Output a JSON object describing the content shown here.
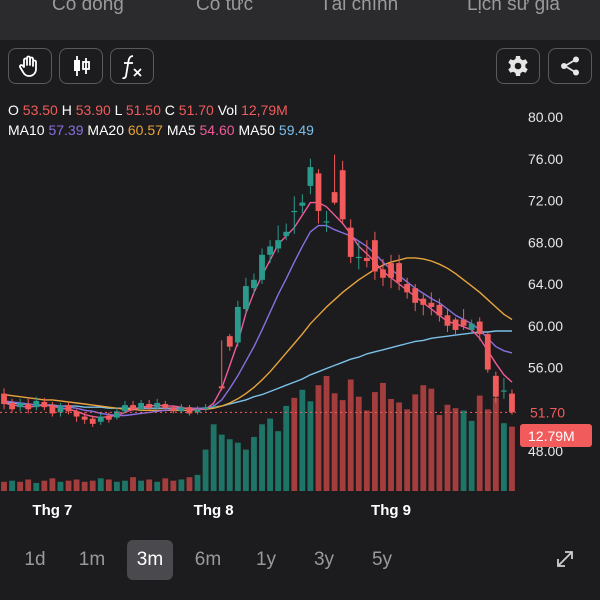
{
  "tabs": [
    "Cổ đông",
    "Cổ tức",
    "Tài chính",
    "Lịch sử giá"
  ],
  "toolbar": {
    "buttons": [
      {
        "name": "hand-tool-button",
        "icon": "hand-icon"
      },
      {
        "name": "candlestick-type-button",
        "icon": "candlestick-icon"
      },
      {
        "name": "indicator-button",
        "icon": "function-fx-icon"
      }
    ],
    "right_buttons": [
      {
        "name": "settings-button",
        "icon": "gear-icon"
      },
      {
        "name": "share-button",
        "icon": "share-icon"
      }
    ]
  },
  "ohlc": {
    "o_label": "O",
    "o_value": "53.50",
    "h_label": "H",
    "h_value": "53.90",
    "l_label": "L",
    "l_value": "51.50",
    "c_label": "C",
    "c_value": "51.70",
    "vol_label": "Vol",
    "vol_value": "12,79M"
  },
  "ma": {
    "ma10_label": "MA10",
    "ma10_value": "57.39",
    "ma20_label": "MA20",
    "ma20_value": "60.57",
    "ma5_label": "MA5",
    "ma5_value": "54.60",
    "ma50_label": "MA50",
    "ma50_value": "59.49"
  },
  "colors": {
    "up": "#2a9a8c",
    "down": "#f25b5b",
    "ma5": "#ef5b9c",
    "ma10": "#8a6fe0",
    "ma20": "#e8a43c",
    "ma50": "#7cc0ea",
    "last_price_badge": "#f25b5b"
  },
  "range": {
    "items": [
      "1d",
      "1m",
      "3m",
      "6m",
      "1y",
      "3y",
      "5y"
    ],
    "active": "3m",
    "expand_icon": "expand-icon"
  },
  "chart_data": {
    "type": "candlestick",
    "y_ticks": [
      "80.00",
      "76.00",
      "72.00",
      "68.00",
      "64.00",
      "60.00",
      "56.00",
      "52.00",
      "48.00"
    ],
    "ylim": [
      46,
      82
    ],
    "x_labels": [
      {
        "label": "Thg 7",
        "index": 6
      },
      {
        "label": "Thg 8",
        "index": 26
      },
      {
        "label": "Thg 9",
        "index": 48
      }
    ],
    "last_price_label": "51.70",
    "last_volume_label": "12.79M",
    "candles": [
      [
        53.5,
        52.5,
        54.0,
        52.0
      ],
      [
        52.6,
        52.0,
        53.0,
        51.7
      ],
      [
        52.2,
        52.6,
        53.0,
        51.8
      ],
      [
        52.5,
        52.0,
        53.0,
        51.6
      ],
      [
        52.2,
        52.8,
        53.2,
        51.9
      ],
      [
        52.7,
        52.2,
        53.1,
        51.9
      ],
      [
        52.4,
        51.6,
        52.7,
        51.3
      ],
      [
        51.7,
        52.3,
        52.6,
        51.3
      ],
      [
        52.4,
        51.8,
        52.7,
        51.5
      ],
      [
        51.8,
        51.3,
        52.0,
        50.8
      ],
      [
        51.3,
        51.0,
        51.7,
        50.6
      ],
      [
        51.1,
        50.6,
        51.4,
        50.3
      ],
      [
        50.8,
        51.3,
        51.6,
        50.5
      ],
      [
        51.4,
        51.0,
        51.7,
        50.7
      ],
      [
        51.2,
        51.8,
        52.2,
        51.0
      ],
      [
        51.8,
        52.4,
        52.8,
        51.6
      ],
      [
        52.4,
        52.0,
        52.8,
        51.8
      ],
      [
        52.0,
        52.6,
        52.9,
        51.8
      ],
      [
        52.5,
        52.1,
        52.9,
        51.9
      ],
      [
        52.2,
        52.6,
        53.0,
        52.0
      ],
      [
        52.5,
        52.1,
        52.8,
        51.8
      ],
      [
        52.2,
        51.8,
        52.4,
        51.6
      ],
      [
        51.8,
        52.2,
        52.5,
        51.6
      ],
      [
        52.2,
        51.6,
        52.4,
        51.4
      ],
      [
        51.7,
        52.0,
        52.3,
        51.5
      ],
      [
        52.0,
        52.2,
        52.5,
        51.8
      ],
      [
        52.2,
        52.3,
        52.6,
        54.0
      ],
      [
        54.2,
        54.0,
        58.6,
        53.8
      ],
      [
        59.0,
        58.0,
        59.2,
        57.6
      ],
      [
        58.4,
        61.8,
        62.4,
        58.0
      ],
      [
        61.6,
        63.8,
        64.6,
        61.2
      ],
      [
        63.6,
        64.4,
        65.0,
        63.0
      ],
      [
        64.4,
        66.8,
        67.4,
        64.0
      ],
      [
        66.8,
        67.6,
        68.2,
        66.0
      ],
      [
        67.4,
        68.2,
        69.6,
        67.0
      ],
      [
        68.6,
        69.0,
        69.8,
        68.2
      ],
      [
        71.0,
        71.0,
        72.4,
        68.8
      ],
      [
        71.5,
        71.8,
        72.6,
        70.8
      ],
      [
        73.4,
        75.2,
        76.0,
        72.6
      ],
      [
        74.6,
        71.0,
        75.0,
        69.8
      ],
      [
        70.0,
        70.0,
        71.0,
        69.0
      ],
      [
        72.8,
        71.8,
        76.4,
        71.6
      ],
      [
        74.9,
        70.2,
        75.8,
        69.8
      ],
      [
        69.4,
        66.6,
        70.2,
        66.0
      ],
      [
        66.6,
        66.6,
        68.0,
        65.4
      ],
      [
        66.5,
        66.2,
        68.2,
        65.6
      ],
      [
        68.2,
        65.2,
        69.0,
        64.4
      ],
      [
        65.4,
        64.6,
        66.4,
        63.8
      ],
      [
        66.0,
        64.6,
        66.8,
        63.6
      ],
      [
        66.0,
        64.2,
        66.8,
        63.4
      ],
      [
        64.0,
        63.2,
        64.6,
        62.6
      ],
      [
        63.6,
        62.2,
        64.0,
        61.4
      ],
      [
        62.6,
        62.0,
        63.0,
        61.0
      ],
      [
        62.2,
        61.8,
        63.2,
        61.0
      ],
      [
        62.0,
        61.0,
        62.6,
        60.4
      ],
      [
        61.0,
        60.0,
        61.6,
        59.4
      ],
      [
        60.6,
        59.6,
        60.8,
        59.0
      ],
      [
        60.6,
        60.0,
        61.6,
        59.6
      ],
      [
        59.6,
        60.2,
        60.6,
        59.2
      ],
      [
        60.4,
        59.2,
        60.8,
        58.6
      ],
      [
        59.2,
        55.8,
        59.4,
        55.5
      ],
      [
        55.2,
        53.2,
        55.6,
        52.6
      ],
      [
        53.8,
        53.8,
        55.0,
        53.0
      ],
      [
        53.5,
        51.7,
        53.9,
        51.5
      ]
    ],
    "volume_scale": [
      0,
      1
    ],
    "volumes": [
      0.08,
      0.09,
      0.08,
      0.1,
      0.07,
      0.09,
      0.11,
      0.08,
      0.09,
      0.1,
      0.08,
      0.09,
      0.11,
      0.1,
      0.08,
      0.09,
      0.12,
      0.09,
      0.1,
      0.08,
      0.11,
      0.09,
      0.1,
      0.12,
      0.14,
      0.36,
      0.58,
      0.49,
      0.45,
      0.42,
      0.36,
      0.47,
      0.58,
      0.63,
      0.52,
      0.74,
      0.81,
      0.88,
      0.78,
      0.92,
      1.0,
      0.85,
      0.79,
      0.97,
      0.82,
      0.7,
      0.86,
      0.94,
      0.8,
      0.77,
      0.71,
      0.84,
      0.92,
      0.89,
      0.66,
      0.75,
      0.72,
      0.7,
      0.61,
      0.83,
      0.71,
      0.81,
      0.59,
      0.56
    ],
    "volume_up_flags": [
      0,
      1,
      0,
      0,
      1,
      0,
      0,
      1,
      0,
      0,
      0,
      0,
      1,
      0,
      1,
      1,
      0,
      1,
      0,
      1,
      0,
      0,
      1,
      0,
      1,
      1,
      1,
      1,
      1,
      1,
      1,
      1,
      1,
      1,
      1,
      1,
      0,
      1,
      1,
      0,
      0,
      0,
      0,
      0,
      0,
      0,
      0,
      0,
      0,
      0,
      0,
      0,
      0,
      0,
      0,
      0,
      0,
      1,
      1,
      0,
      0,
      0,
      1,
      0
    ],
    "ma5": [
      52.6,
      52.4,
      52.3,
      52.2,
      52.3,
      52.4,
      52.3,
      52.1,
      52.0,
      51.8,
      51.5,
      51.3,
      51.2,
      51.3,
      51.4,
      51.7,
      52.0,
      52.2,
      52.3,
      52.4,
      52.3,
      52.3,
      52.2,
      52.0,
      52.0,
      52.0,
      52.6,
      54.0,
      56.2,
      58.4,
      61.2,
      63.2,
      64.8,
      66.3,
      67.8,
      68.6,
      69.4,
      70.6,
      71.8,
      71.8,
      71.4,
      70.6,
      69.8,
      68.8,
      67.6,
      66.9,
      66.1,
      65.2,
      64.6,
      64.0,
      63.4,
      62.8,
      62.2,
      61.6,
      61.0,
      60.4,
      60.2,
      59.9,
      59.6,
      58.8,
      57.6,
      56.4,
      55.3,
      54.6
    ],
    "ma10": [
      52.8,
      52.7,
      52.6,
      52.5,
      52.4,
      52.4,
      52.3,
      52.3,
      52.2,
      52.1,
      51.9,
      51.8,
      51.6,
      51.5,
      51.4,
      51.4,
      51.5,
      51.6,
      51.7,
      51.8,
      51.9,
      52.0,
      52.1,
      52.1,
      52.1,
      52.1,
      52.3,
      52.9,
      54.0,
      55.2,
      56.6,
      58.0,
      59.6,
      61.3,
      63.0,
      64.5,
      66.1,
      67.6,
      69.0,
      69.6,
      69.6,
      69.2,
      68.9,
      68.6,
      68.1,
      67.6,
      66.9,
      66.1,
      65.4,
      64.8,
      64.2,
      63.6,
      63.1,
      62.6,
      62.2,
      61.6,
      61.0,
      60.6,
      60.2,
      59.6,
      58.8,
      58.0,
      57.6,
      57.4
    ],
    "ma20": [
      53.4,
      53.3,
      53.2,
      53.1,
      53.0,
      52.9,
      52.9,
      52.8,
      52.7,
      52.6,
      52.5,
      52.4,
      52.3,
      52.2,
      52.1,
      52.0,
      52.0,
      51.9,
      51.9,
      51.9,
      51.9,
      51.9,
      51.9,
      51.9,
      52.0,
      52.0,
      52.1,
      52.3,
      52.6,
      53.0,
      53.5,
      54.1,
      54.8,
      55.6,
      56.5,
      57.4,
      58.3,
      59.2,
      60.2,
      61.0,
      61.8,
      62.5,
      63.2,
      63.8,
      64.4,
      64.9,
      65.4,
      65.8,
      66.1,
      66.3,
      66.5,
      66.5,
      66.4,
      66.2,
      65.9,
      65.5,
      65.0,
      64.4,
      63.8,
      63.2,
      62.5,
      61.8,
      61.1,
      60.6
    ],
    "ma50": [
      52.6,
      52.6,
      52.5,
      52.5,
      52.4,
      52.4,
      52.4,
      52.3,
      52.3,
      52.3,
      52.2,
      52.2,
      52.2,
      52.1,
      52.1,
      52.1,
      52.1,
      52.1,
      52.1,
      52.1,
      52.1,
      52.1,
      52.1,
      52.1,
      52.1,
      52.1,
      52.2,
      52.3,
      52.5,
      52.7,
      52.9,
      53.2,
      53.4,
      53.7,
      54.0,
      54.3,
      54.6,
      54.9,
      55.3,
      55.6,
      55.9,
      56.2,
      56.5,
      56.8,
      57.0,
      57.3,
      57.5,
      57.7,
      57.9,
      58.1,
      58.3,
      58.5,
      58.6,
      58.8,
      58.9,
      59.0,
      59.1,
      59.2,
      59.3,
      59.4,
      59.4,
      59.5,
      59.5,
      59.5
    ]
  }
}
